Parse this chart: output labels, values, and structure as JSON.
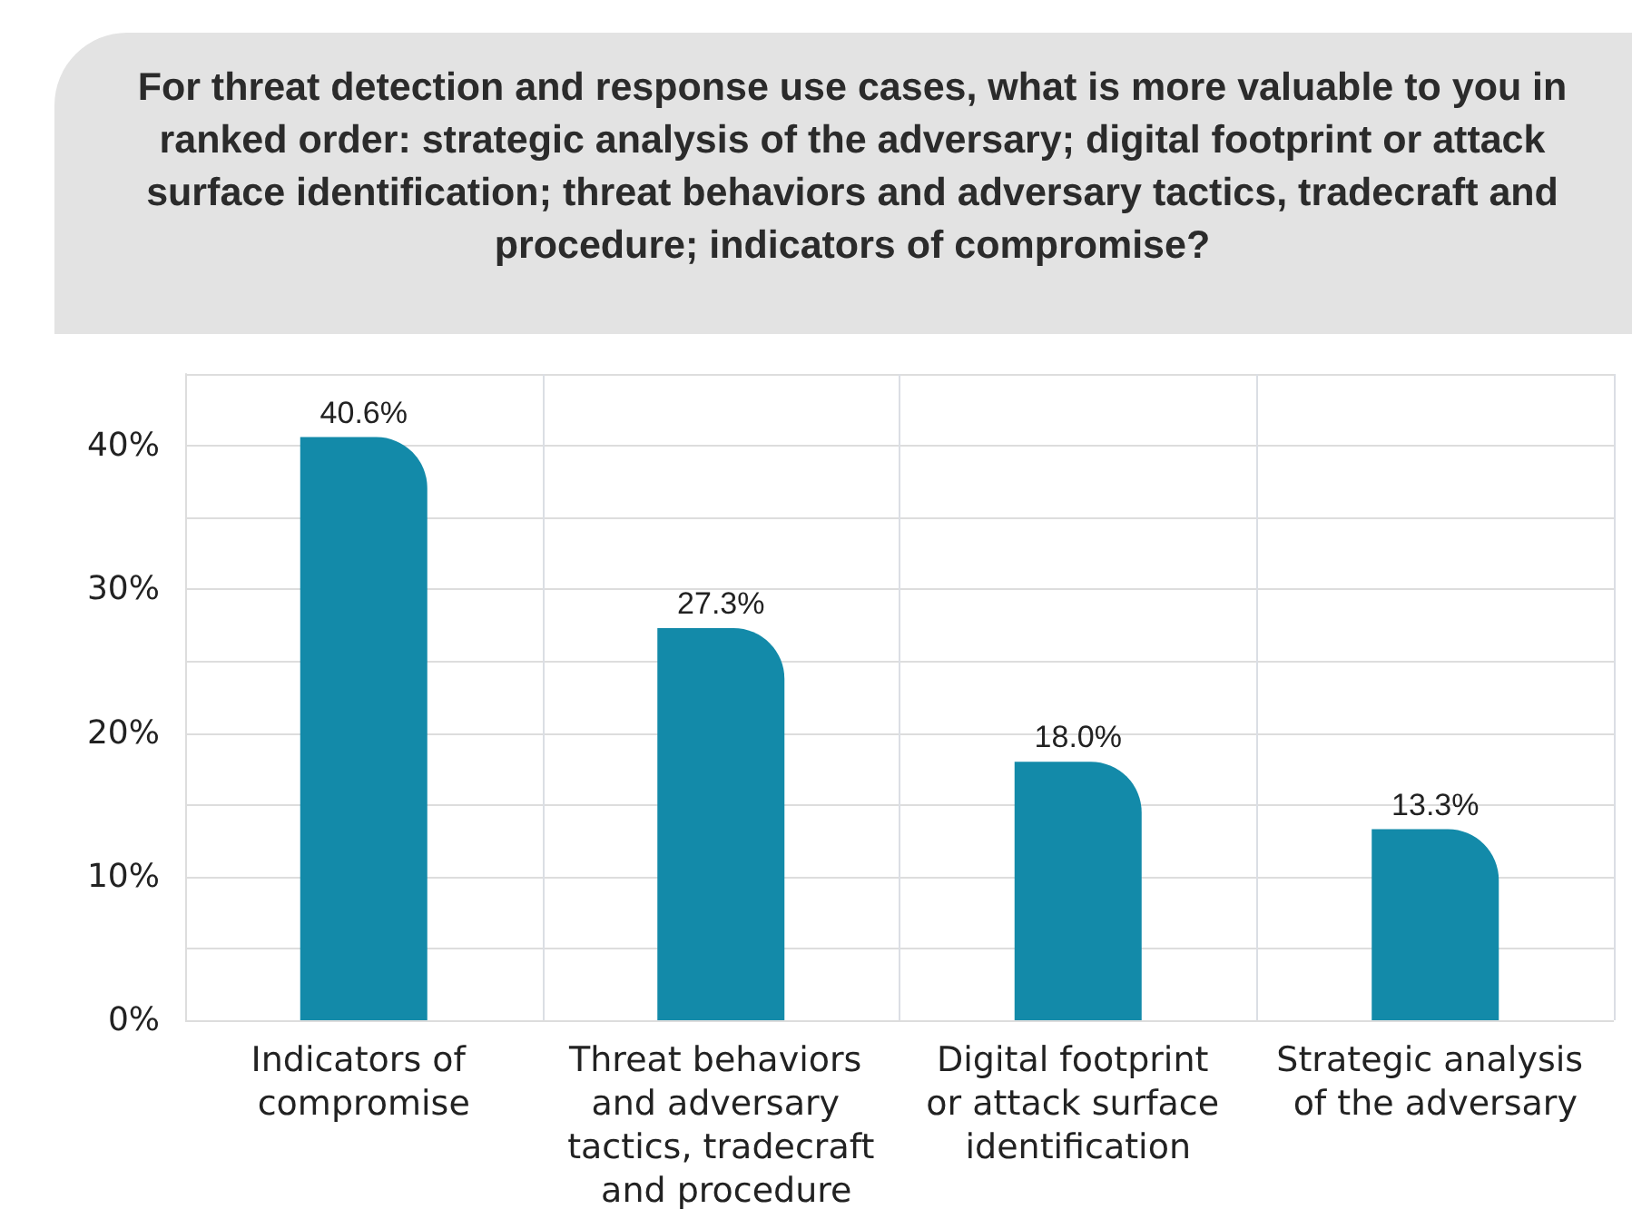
{
  "chart_data": {
    "type": "bar",
    "title": "For threat detection and response use cases, what is more valuable to you in ranked order: strategic analysis of the adversary; digital footprint or attack surface identification; threat behaviors and adversary tactics, tradecraft and procedure; indicators of compromise?",
    "categories": [
      "Indicators of compromise",
      "Threat behaviors and adversary tactics, tradecraft and procedure",
      "Digital footprint or attack surface identification",
      "Strategic analysis of the adversary"
    ],
    "values": [
      40.6,
      27.3,
      18.0,
      13.3
    ],
    "value_labels": [
      "40.6%",
      "27.3%",
      "18.0%",
      "13.3%"
    ],
    "color": "#138aa9",
    "ylim": [
      0,
      45
    ],
    "yticks": [
      {
        "value": 0,
        "label": "0%"
      },
      {
        "value": 5,
        "label": null
      },
      {
        "value": 10,
        "label": "10%"
      },
      {
        "value": 15,
        "label": null
      },
      {
        "value": 20,
        "label": "20%"
      },
      {
        "value": 25,
        "label": null
      },
      {
        "value": 30,
        "label": "30%"
      },
      {
        "value": 35,
        "label": null
      },
      {
        "value": 40,
        "label": "40%"
      },
      {
        "value": 45,
        "label": null
      }
    ],
    "grid": true
  }
}
